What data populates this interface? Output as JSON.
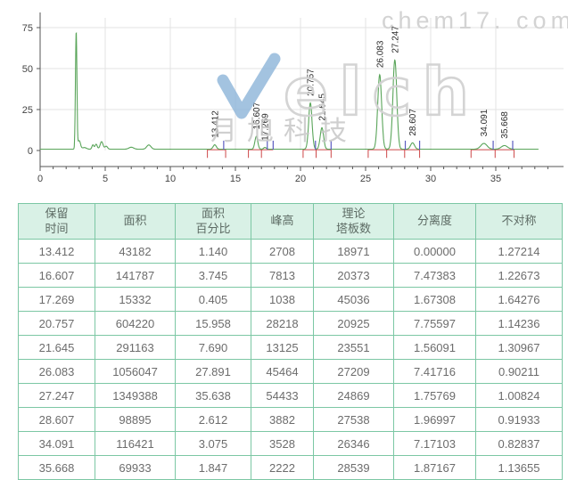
{
  "watermark": {
    "logo_letters": "elch",
    "url_text": "chem17. com",
    "cn_text": "月旭科技"
  },
  "colors": {
    "trace": "#5aa55a",
    "integration_baseline": "#cc4747",
    "event_marks": "#5c5cc0",
    "grid": "#e3e3e3",
    "axis": "#555555",
    "tick_text": "#444444",
    "peak_label_text": "#2a2a2a",
    "table_border": "#7cc7a4",
    "table_header_bg": "#d9f1e6",
    "watermark_blue": "#8cb4d8",
    "watermark_gray": "#d2d2d2"
  },
  "chart_data": {
    "type": "line",
    "title": "",
    "xlabel": "",
    "ylabel": "",
    "x_axis": {
      "ticks": [
        0,
        5,
        10,
        15,
        20,
        25,
        30,
        35
      ],
      "minor_step": 1,
      "range": [
        0,
        40.2
      ]
    },
    "y_axis": {
      "ticks": [
        0,
        25,
        50,
        75
      ],
      "range": [
        -10,
        83
      ]
    },
    "grid": true,
    "baseline_level": 0.8,
    "labeled_peaks": [
      {
        "rt": 13.412,
        "label": "13.412",
        "h": 2.71,
        "sigma": 0.12
      },
      {
        "rt": 16.607,
        "label": "16.607",
        "h": 7.81,
        "sigma": 0.11
      },
      {
        "rt": 17.269,
        "label": "17.269",
        "h": 1.04,
        "sigma": 0.1
      },
      {
        "rt": 20.757,
        "label": "20.757",
        "h": 28.22,
        "sigma": 0.13
      },
      {
        "rt": 21.645,
        "label": "21.645",
        "h": 13.13,
        "sigma": 0.13
      },
      {
        "rt": 26.083,
        "label": "26.083",
        "h": 45.46,
        "sigma": 0.15
      },
      {
        "rt": 27.247,
        "label": "27.247",
        "h": 54.43,
        "sigma": 0.15
      },
      {
        "rt": 28.607,
        "label": "28.607",
        "h": 3.88,
        "sigma": 0.15
      },
      {
        "rt": 34.091,
        "label": "34.091",
        "h": 3.53,
        "sigma": 0.24
      },
      {
        "rt": 35.668,
        "label": "35.668",
        "h": 2.22,
        "sigma": 0.24
      }
    ],
    "unlabeled_peaks": [
      {
        "rt": 2.77,
        "h": 71.5,
        "sigma": 0.055
      },
      {
        "rt": 3.0,
        "h": 5.2,
        "sigma": 0.1
      },
      {
        "rt": 3.4,
        "h": 1.0,
        "sigma": 0.15
      },
      {
        "rt": 4.05,
        "h": 2.6,
        "sigma": 0.07
      },
      {
        "rt": 4.3,
        "h": 3.0,
        "sigma": 0.09
      },
      {
        "rt": 4.72,
        "h": 4.6,
        "sigma": 0.11
      },
      {
        "rt": 5.08,
        "h": 1.8,
        "sigma": 0.1
      },
      {
        "rt": 7.0,
        "h": 1.2,
        "sigma": 0.18
      },
      {
        "rt": 8.35,
        "h": 2.6,
        "sigma": 0.16
      }
    ],
    "integration": {
      "segments": [
        [
          12.85,
          14.25
        ],
        [
          16.0,
          17.9
        ],
        [
          20.2,
          22.35
        ],
        [
          25.2,
          29.15
        ],
        [
          33.1,
          36.4
        ]
      ],
      "drop_lines": [
        12.85,
        14.25,
        16.0,
        17.0,
        20.2,
        21.2,
        22.35,
        25.2,
        26.62,
        28.0,
        29.15,
        33.1,
        34.95,
        36.4
      ],
      "event_marks": [
        14.1,
        17.45,
        17.9,
        21.15,
        22.35,
        28.05,
        29.15,
        34.8,
        36.3
      ]
    }
  },
  "table": {
    "headers": [
      "保留\n时间",
      "面积",
      "面积\n百分比",
      "峰高",
      "理论\n塔板数",
      "分离度",
      "不对称"
    ],
    "rows": [
      [
        "13.412",
        "43182",
        "1.140",
        "2708",
        "18971",
        "0.00000",
        "1.27214"
      ],
      [
        "16.607",
        "141787",
        "3.745",
        "7813",
        "20373",
        "7.47383",
        "1.22673"
      ],
      [
        "17.269",
        "15332",
        "0.405",
        "1038",
        "45036",
        "1.67308",
        "1.64276"
      ],
      [
        "20.757",
        "604220",
        "15.958",
        "28218",
        "20925",
        "7.75597",
        "1.14236"
      ],
      [
        "21.645",
        "291163",
        "7.690",
        "13125",
        "23551",
        "1.56091",
        "1.30967"
      ],
      [
        "26.083",
        "1056047",
        "27.891",
        "45464",
        "27209",
        "7.41716",
        "0.90211"
      ],
      [
        "27.247",
        "1349388",
        "35.638",
        "54433",
        "24869",
        "1.75769",
        "1.00824"
      ],
      [
        "28.607",
        "98895",
        "2.612",
        "3882",
        "27538",
        "1.96997",
        "0.91933"
      ],
      [
        "34.091",
        "116421",
        "3.075",
        "3528",
        "26346",
        "7.17103",
        "0.82837"
      ],
      [
        "35.668",
        "69933",
        "1.847",
        "2222",
        "28539",
        "1.87167",
        "1.13655"
      ]
    ]
  }
}
